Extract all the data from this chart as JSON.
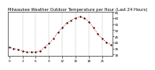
{
  "title": "Milwaukee Weather Outdoor Temperature per Hour (Last 24 Hours)",
  "x_hours": [
    0,
    1,
    2,
    3,
    4,
    5,
    6,
    7,
    8,
    9,
    10,
    11,
    12,
    13,
    14,
    15,
    16,
    17,
    18,
    19,
    20,
    21,
    22,
    23
  ],
  "temperatures": [
    36,
    35,
    34,
    33,
    32,
    32,
    32,
    33,
    36,
    39,
    43,
    48,
    52,
    56,
    58,
    60,
    61,
    60,
    57,
    52,
    47,
    43,
    40,
    38
  ],
  "line_color": "#ff0000",
  "marker_color": "#000000",
  "bg_color": "#ffffff",
  "grid_color": "#888888",
  "text_color": "#000000",
  "ylim": [
    29,
    65
  ],
  "yticks": [
    30,
    35,
    40,
    45,
    50,
    55,
    60,
    65
  ],
  "ytick_labels": [
    "30",
    "35",
    "40",
    "45",
    "50",
    "55",
    "60",
    "65"
  ],
  "vgrid_positions": [
    3,
    6,
    9,
    12,
    15,
    18,
    21
  ],
  "xtick_major": [
    0,
    3,
    6,
    9,
    12,
    15,
    18,
    21
  ],
  "xtick_major_labels": [
    "0",
    "3",
    "6",
    "9",
    "12",
    "15",
    "18",
    "21"
  ],
  "title_fontsize": 3.8,
  "tick_fontsize": 3.0,
  "linewidth": 0.7,
  "markersize": 1.2
}
